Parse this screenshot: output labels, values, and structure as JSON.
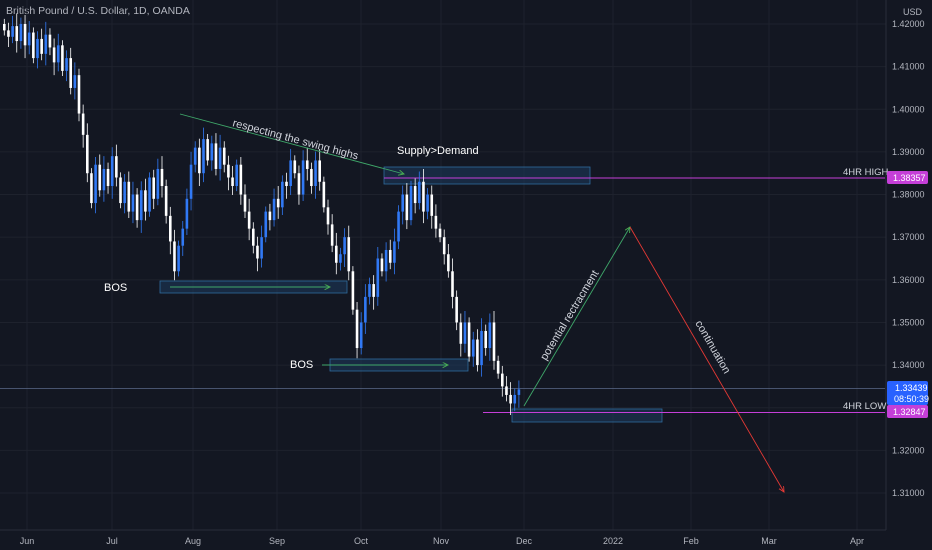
{
  "header": {
    "title": "British Pound / U.S. Dollar, 1D, OANDA"
  },
  "price_axis": {
    "currency": "USD",
    "ticks": [
      "1.42000",
      "1.41000",
      "1.40000",
      "1.39000",
      "1.38000",
      "1.37000",
      "1.36000",
      "1.35000",
      "1.34000",
      "1.33000",
      "1.32000",
      "1.31000"
    ]
  },
  "time_axis": {
    "ticks": [
      "Jun",
      "Jul",
      "Aug",
      "Sep",
      "Oct",
      "Nov",
      "Dec",
      "2022",
      "Feb",
      "Mar",
      "Apr"
    ]
  },
  "markers": {
    "current_price": "1.33439",
    "countdown": "08:50:39",
    "hr4_high_label": "4HR HIGH",
    "hr4_high_value": "1.38357",
    "hr4_low_label": "4HR LOW",
    "hr4_low_value": "1.32847"
  },
  "annotations": {
    "swing_highs": "respecting the swing highs",
    "supply_demand": "Supply>Demand",
    "bos_1": "BOS",
    "bos_2": "BOS",
    "retracement": "potential rectracment",
    "continuation": "continuation"
  },
  "colors": {
    "background": "#131722",
    "up": "#3179f5",
    "down": "#ffffff",
    "grid": "#1e222d",
    "high_line": "#c53fd8",
    "low_line": "#c53fd8",
    "price_tag": "#2962ff",
    "zone": "#2a5a8c",
    "arrow_up": "#4caf50",
    "arrow_down": "#e53935"
  },
  "chart_data": {
    "type": "candlestick",
    "symbol": "GBPUSD",
    "timeframe": "1D",
    "ylim": [
      1.305,
      1.425
    ],
    "closes": [
      1.4185,
      1.417,
      1.4195,
      1.416,
      1.42,
      1.415,
      1.418,
      1.412,
      1.4165,
      1.413,
      1.4175,
      1.4145,
      1.411,
      1.415,
      1.409,
      1.412,
      1.405,
      1.408,
      1.399,
      1.394,
      1.385,
      1.378,
      1.387,
      1.381,
      1.386,
      1.382,
      1.389,
      1.384,
      1.378,
      1.383,
      1.376,
      1.38,
      1.374,
      1.381,
      1.376,
      1.384,
      1.379,
      1.386,
      1.382,
      1.375,
      1.369,
      1.362,
      1.368,
      1.372,
      1.379,
      1.387,
      1.391,
      1.385,
      1.393,
      1.388,
      1.392,
      1.386,
      1.391,
      1.387,
      1.384,
      1.382,
      1.387,
      1.38,
      1.376,
      1.372,
      1.368,
      1.365,
      1.37,
      1.376,
      1.374,
      1.379,
      1.377,
      1.383,
      1.382,
      1.388,
      1.385,
      1.38,
      1.388,
      1.386,
      1.382,
      1.388,
      1.383,
      1.377,
      1.373,
      1.368,
      1.364,
      1.366,
      1.37,
      1.362,
      1.353,
      1.344,
      1.35,
      1.356,
      1.359,
      1.356,
      1.365,
      1.362,
      1.367,
      1.364,
      1.369,
      1.376,
      1.38,
      1.374,
      1.382,
      1.378,
      1.383,
      1.376,
      1.38,
      1.375,
      1.372,
      1.37,
      1.366,
      1.362,
      1.356,
      1.35,
      1.345,
      1.35,
      1.342,
      1.346,
      1.34,
      1.348,
      1.344,
      1.35,
      1.341,
      1.338,
      1.335,
      1.333,
      1.331,
      1.333,
      1.3343
    ]
  }
}
